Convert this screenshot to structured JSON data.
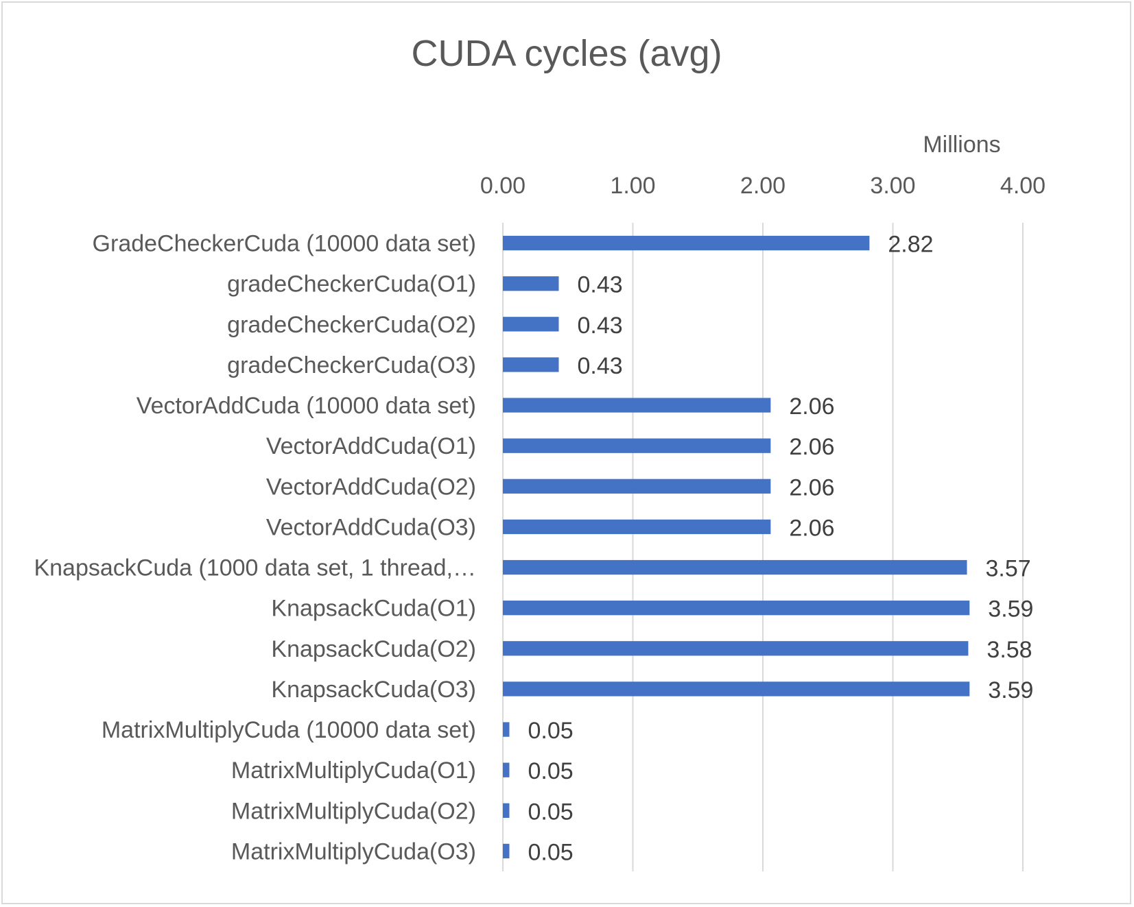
{
  "chart_data": {
    "type": "bar",
    "orientation": "horizontal",
    "title": "CUDA cycles (avg)",
    "axis_unit_label": "Millions",
    "xlabel": "",
    "ylabel": "",
    "xlim": [
      0,
      4
    ],
    "x_ticks": [
      "0.00",
      "1.00",
      "2.00",
      "3.00",
      "4.00"
    ],
    "x_tick_values": [
      0,
      1,
      2,
      3,
      4
    ],
    "x_axis_position": "top",
    "grid": true,
    "legend": "none",
    "bar_color": "#4472c4",
    "categories": [
      "GradeCheckerCuda (10000 data set)",
      "gradeCheckerCuda(O1)",
      "gradeCheckerCuda(O2)",
      "gradeCheckerCuda(O3)",
      "VectorAddCuda (10000 data set)",
      "VectorAddCuda(O1)",
      "VectorAddCuda(O2)",
      "VectorAddCuda(O3)",
      "KnapsackCuda (1000 data set, 1 thread,…",
      "KnapsackCuda(O1)",
      "KnapsackCuda(O2)",
      "KnapsackCuda(O3)",
      "MatrixMultiplyCuda (10000 data set)",
      "MatrixMultiplyCuda(O1)",
      "MatrixMultiplyCuda(O2)",
      "MatrixMultiplyCuda(O3)"
    ],
    "values": [
      2.82,
      0.43,
      0.43,
      0.43,
      2.06,
      2.06,
      2.06,
      2.06,
      3.57,
      3.59,
      3.58,
      3.59,
      0.05,
      0.05,
      0.05,
      0.05
    ],
    "data_labels": [
      "2.82",
      "0.43",
      "0.43",
      "0.43",
      "2.06",
      "2.06",
      "2.06",
      "2.06",
      "3.57",
      "3.59",
      "3.58",
      "3.59",
      "0.05",
      "0.05",
      "0.05",
      "0.05"
    ]
  }
}
